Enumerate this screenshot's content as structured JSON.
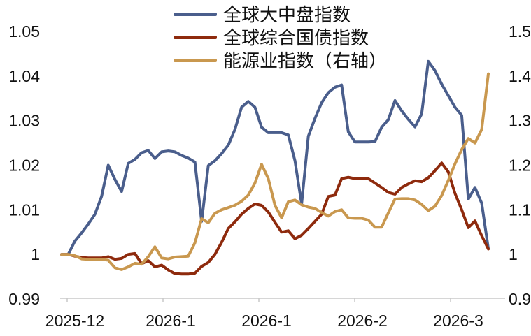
{
  "chart_data": {
    "type": "line",
    "title": "",
    "x_tick_labels": [
      "2025-12",
      "2026-1",
      "2026-1",
      "2026-2",
      "2026-3"
    ],
    "left_axis": {
      "min": 0.99,
      "max": 1.05,
      "tick_labels": [
        "1.05",
        "1.04",
        "1.03",
        "1.02",
        "1.01",
        "1",
        "0.99"
      ],
      "tick_values": [
        1.05,
        1.04,
        1.03,
        1.02,
        1.01,
        1.0,
        0.99
      ]
    },
    "right_axis": {
      "min": 0.9,
      "max": 1.5,
      "tick_labels": [
        "1.5",
        "1.4",
        "1.3",
        "1.2",
        "1.1",
        "1",
        "0.9"
      ],
      "tick_values": [
        1.5,
        1.4,
        1.3,
        1.2,
        1.1,
        1.0,
        0.9
      ]
    },
    "grid": "off",
    "legend_position": "top-center",
    "axis_line_color": "#c9c9c9",
    "series": [
      {
        "name": "全球大中盘指数",
        "axis": "left",
        "color": "#4A5E8C",
        "values": [
          1.0,
          1.0,
          1.003,
          1.0048,
          1.0068,
          1.009,
          1.013,
          1.02,
          1.0168,
          1.0141,
          1.0204,
          1.0213,
          1.0228,
          1.0233,
          1.0215,
          1.023,
          1.0232,
          1.023,
          1.0222,
          1.0216,
          1.0207,
          1.0074,
          1.0199,
          1.021,
          1.0226,
          1.0245,
          1.028,
          1.033,
          1.0343,
          1.033,
          1.0285,
          1.0273,
          1.0273,
          1.0273,
          1.0268,
          1.021,
          1.0113,
          1.0265,
          1.0305,
          1.034,
          1.0363,
          1.0375,
          1.038,
          1.0275,
          1.0252,
          1.0252,
          1.0252,
          1.0253,
          1.0285,
          1.0302,
          1.0345,
          1.0322,
          1.0303,
          1.0286,
          1.0315,
          1.0433,
          1.0412,
          1.0382,
          1.0356,
          1.033,
          1.0312,
          1.0124,
          1.015,
          1.0115,
          1.0013
        ]
      },
      {
        "name": "全球综合国债指数",
        "axis": "left",
        "color": "#8E2A0D",
        "values": [
          1.0,
          1.0,
          0.9996,
          0.9993,
          0.9992,
          0.9992,
          0.9992,
          0.9995,
          0.9989,
          0.9991,
          1.0,
          1.0002,
          0.9979,
          0.9986,
          0.9972,
          0.9976,
          0.9965,
          0.9957,
          0.9956,
          0.9956,
          0.9958,
          0.9973,
          0.9982,
          1.0,
          1.0027,
          1.0058,
          1.0073,
          1.009,
          1.0103,
          1.0113,
          1.011,
          1.0095,
          1.0072,
          1.005,
          1.0053,
          1.0035,
          1.0043,
          1.0058,
          1.0074,
          1.009,
          1.013,
          1.0133,
          1.017,
          1.0173,
          1.017,
          1.017,
          1.017,
          1.016,
          1.015,
          1.0139,
          1.0135,
          1.015,
          1.0158,
          1.0165,
          1.0163,
          1.0172,
          1.0188,
          1.0205,
          1.0185,
          1.0137,
          1.01,
          1.006,
          1.0075,
          1.0042,
          1.0012
        ]
      },
      {
        "name": "能源业指数（右轴）",
        "axis": "right",
        "color": "#C9984F",
        "values": [
          1.0,
          1.0,
          0.997,
          0.99,
          0.989,
          0.989,
          0.989,
          0.987,
          0.97,
          0.966,
          0.972,
          0.98,
          0.978,
          0.995,
          1.017,
          0.992,
          0.99,
          0.994,
          0.995,
          0.996,
          1.026,
          1.08,
          1.071,
          1.092,
          1.1,
          1.105,
          1.11,
          1.119,
          1.133,
          1.16,
          1.202,
          1.17,
          1.11,
          1.082,
          1.118,
          1.122,
          1.111,
          1.106,
          1.103,
          1.094,
          1.086,
          1.096,
          1.1,
          1.082,
          1.081,
          1.081,
          1.077,
          1.061,
          1.061,
          1.093,
          1.124,
          1.125,
          1.125,
          1.122,
          1.112,
          1.098,
          1.108,
          1.132,
          1.166,
          1.203,
          1.235,
          1.26,
          1.25,
          1.28,
          1.405
        ]
      }
    ]
  },
  "legend": {
    "items": [
      {
        "label": "全球大中盘指数"
      },
      {
        "label": "全球综合国债指数"
      },
      {
        "label": "能源业指数（右轴）"
      }
    ]
  }
}
